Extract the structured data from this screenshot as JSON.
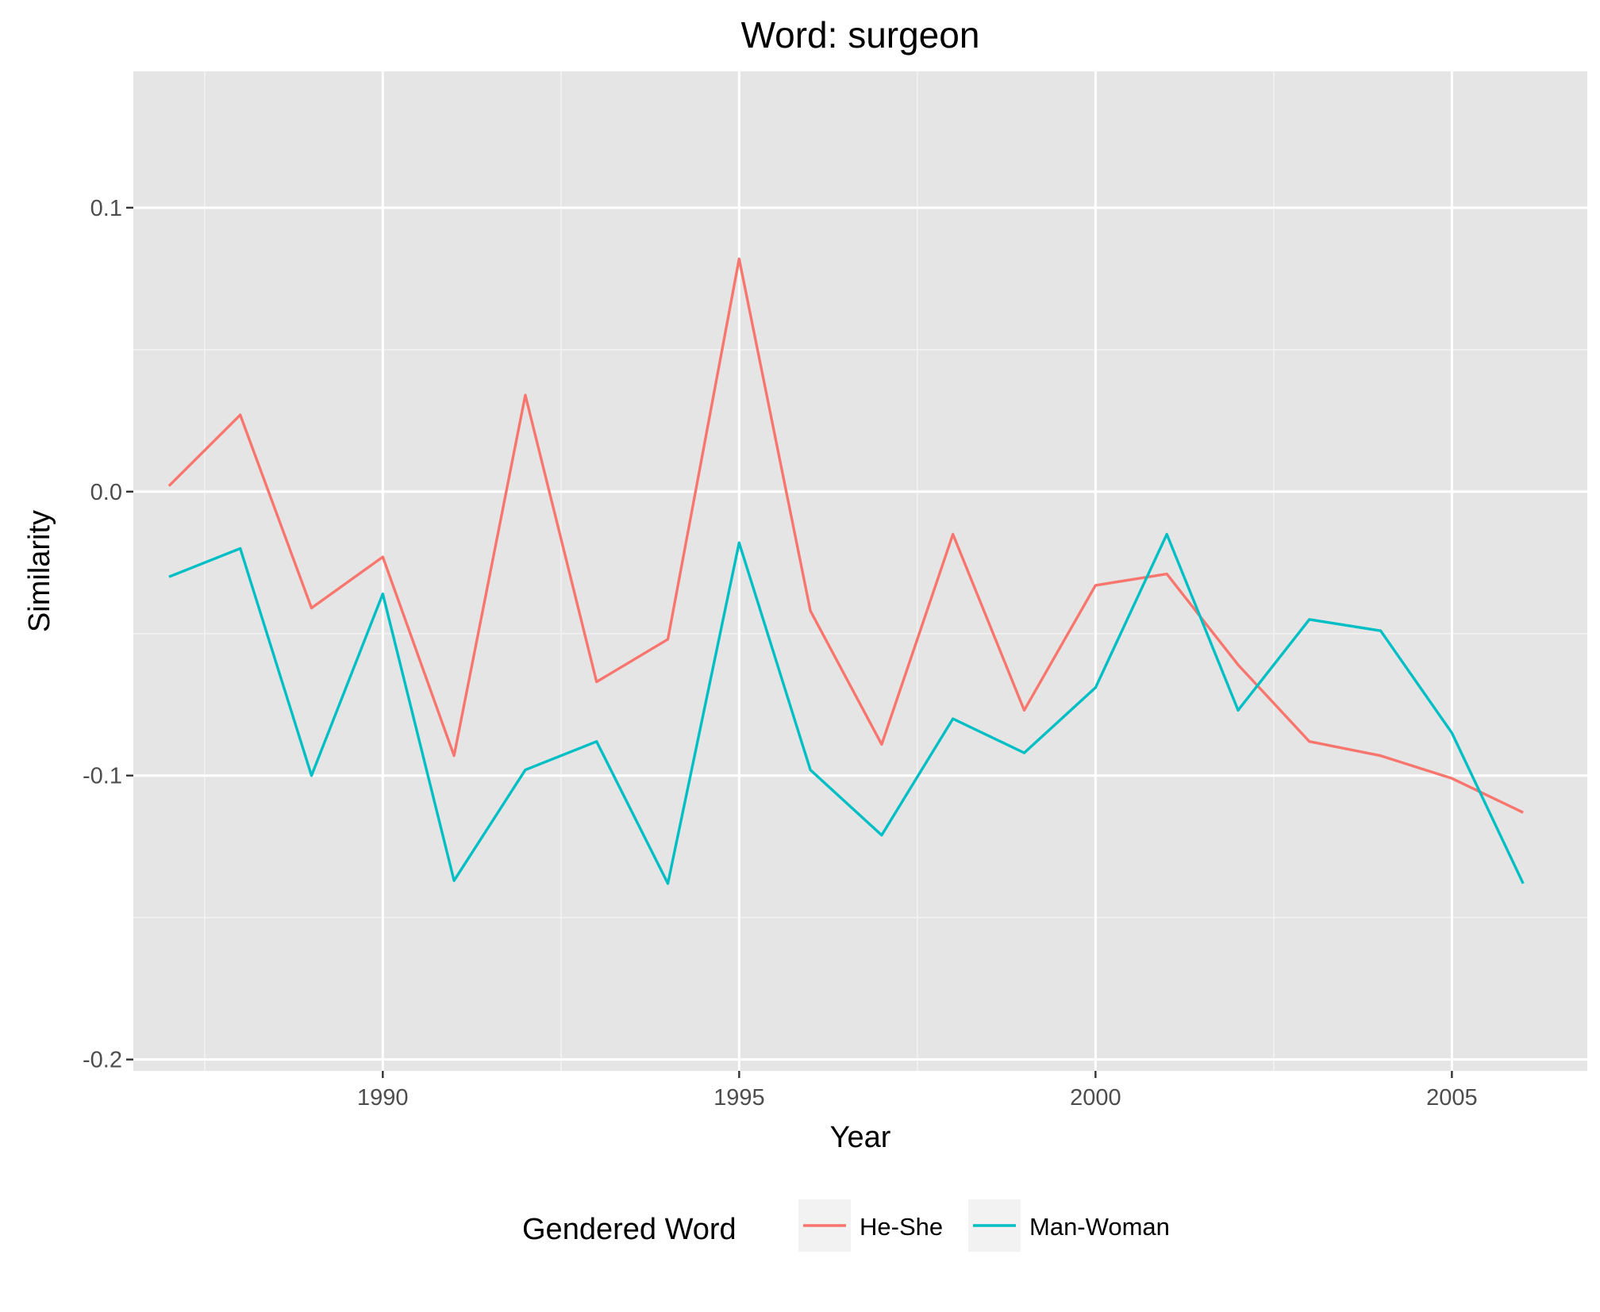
{
  "chart_data": {
    "type": "line",
    "title": "Word: surgeon",
    "xlabel": "Year",
    "ylabel": "Similarity",
    "x": [
      1987,
      1988,
      1989,
      1990,
      1991,
      1992,
      1993,
      1994,
      1995,
      1996,
      1997,
      1998,
      1999,
      2000,
      2001,
      2002,
      2003,
      2004,
      2005,
      2006
    ],
    "series": [
      {
        "name": "He-She",
        "color": "#F8766D",
        "values": [
          0.002,
          0.027,
          -0.041,
          -0.023,
          -0.093,
          0.034,
          -0.067,
          -0.052,
          0.082,
          -0.042,
          -0.089,
          -0.015,
          -0.077,
          -0.033,
          -0.029,
          -0.061,
          -0.088,
          -0.093,
          -0.101,
          -0.113
        ]
      },
      {
        "name": "Man-Woman",
        "color": "#00BFC4",
        "values": [
          -0.03,
          -0.02,
          -0.1,
          -0.036,
          -0.137,
          -0.098,
          -0.088,
          -0.138,
          -0.018,
          -0.098,
          -0.121,
          -0.08,
          -0.092,
          -0.069,
          -0.015,
          -0.077,
          -0.045,
          -0.049,
          -0.085,
          -0.138
        ]
      }
    ],
    "xlim": [
      1986.5,
      2006.9
    ],
    "ylim": [
      -0.204,
      0.148
    ],
    "x_ticks": [
      1990,
      1995,
      2000,
      2005
    ],
    "x_tick_labels": [
      "1990",
      "1995",
      "2000",
      "2005"
    ],
    "y_ticks": [
      -0.2,
      -0.1,
      0.0,
      0.1
    ],
    "y_tick_labels": [
      "-0.2",
      "-0.1",
      "0.0",
      "0.1"
    ],
    "grid": true,
    "panel_background": "#E5E5E5",
    "legend": {
      "title": "Gendered Word",
      "placement": "bottom"
    }
  }
}
